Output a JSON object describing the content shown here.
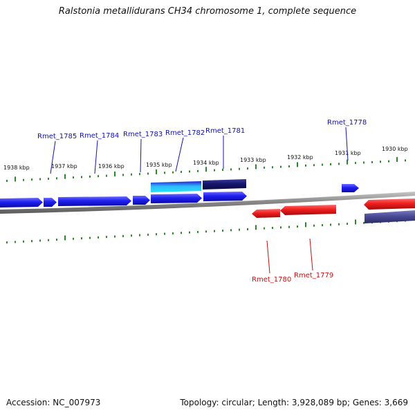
{
  "title": "Ralstonia metallidurans CH34 chromosome 1, complete sequence",
  "footer": {
    "accession": "Accession: NC_007973",
    "topology": "Topology: circular; Length: 3,928,089 bp; Genes: 3,669"
  },
  "colors": {
    "forward_gene": "#1f1ff0",
    "forward_gene_dark": "#16166e",
    "reverse_gene": "#f01f1f",
    "reverse_gene_dark": "#4a4a96",
    "selected_gene": "#22e6f0",
    "ticks": "#2a8a2a",
    "backbone": "#8a8a8a",
    "forward_label": "#1010b0",
    "reverse_label": "#c01010"
  },
  "map": {
    "tick_labels": [
      "1938 kbp",
      "1937 kbp",
      "1936 kbp",
      "1935 kbp",
      "1934 kbp",
      "1933 kbp",
      "1932 kbp",
      "1931 kbp",
      "1930 kbp"
    ],
    "forward_labels": [
      "Rmet_1785",
      "Rmet_1784",
      "Rmet_1783",
      "Rmet_1782",
      "Rmet_1781",
      "Rmet_1778"
    ],
    "reverse_labels": [
      "Rmet_1780",
      "Rmet_1779"
    ]
  }
}
